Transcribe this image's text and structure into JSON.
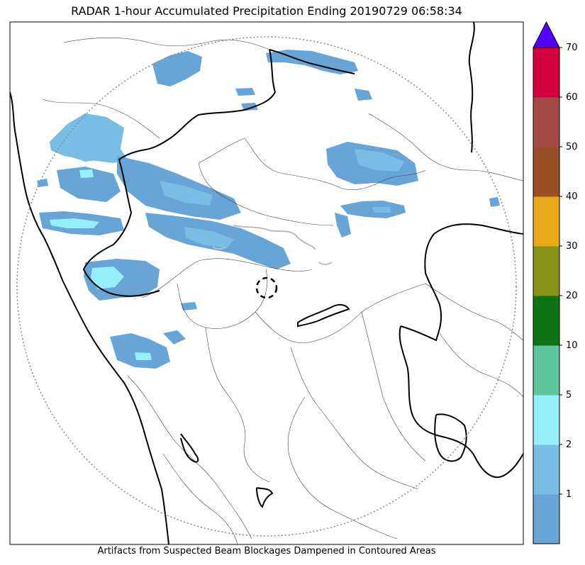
{
  "title": "RADAR 1-hour Accumulated Precipitation Ending 20190729 06:58:34",
  "footer_note": "Artifacts from Suspected Beam Blockages Dampened in Contoured Areas",
  "colorbar": {
    "tick_labels": [
      "1",
      "2",
      "5",
      "10",
      "20",
      "30",
      "40",
      "50",
      "60",
      "70"
    ],
    "bins": [
      {
        "color": "#66a5d6"
      },
      {
        "color": "#78bde3"
      },
      {
        "color": "#97effd"
      },
      {
        "color": "#5ec59c"
      },
      {
        "color": "#0d7315"
      },
      {
        "color": "#8a9117"
      },
      {
        "color": "#e8a91b"
      },
      {
        "color": "#9a4f27"
      },
      {
        "color": "#a34a44"
      },
      {
        "color": "#d5003f"
      }
    ],
    "overflow_color": "#5500ff"
  },
  "map_colors": {
    "state_border": "#000000",
    "district_border": "#444444",
    "range_ring": "#888888",
    "blockage_contour": "#bdbdbd"
  }
}
